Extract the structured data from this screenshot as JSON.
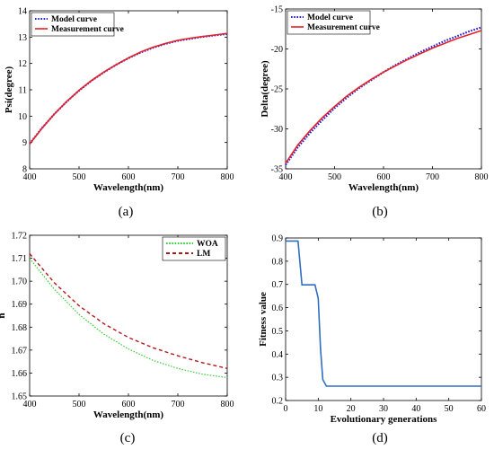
{
  "panels": {
    "a": {
      "caption": "(a)"
    },
    "b": {
      "caption": "(b)"
    },
    "c": {
      "caption": "(c)"
    },
    "d": {
      "caption": "(d)"
    }
  },
  "chart_data": [
    {
      "id": "a",
      "type": "line",
      "xlabel": "Wavelength(nm)",
      "ylabel": "Psi(degree)",
      "xlim": [
        400,
        800
      ],
      "ylim": [
        8,
        14
      ],
      "xticks": [
        400,
        500,
        600,
        700,
        800
      ],
      "yticks": [
        8,
        9,
        10,
        11,
        12,
        13,
        14
      ],
      "grid": false,
      "legend_position": "top-left",
      "x": [
        400,
        425,
        450,
        475,
        500,
        525,
        550,
        575,
        600,
        625,
        650,
        675,
        700,
        725,
        750,
        775,
        800
      ],
      "series": [
        {
          "name": "Model curve",
          "color": "#1f1fd6",
          "style": "dotted",
          "values": [
            8.95,
            9.55,
            10.08,
            10.55,
            10.97,
            11.34,
            11.66,
            11.95,
            12.2,
            12.42,
            12.6,
            12.75,
            12.86,
            12.94,
            13.01,
            13.07,
            13.12
          ]
        },
        {
          "name": "Measurement curve",
          "color": "#e8202a",
          "style": "solid",
          "values": [
            8.94,
            9.54,
            10.08,
            10.56,
            10.98,
            11.35,
            11.67,
            11.95,
            12.21,
            12.44,
            12.62,
            12.76,
            12.88,
            12.96,
            13.02,
            13.08,
            13.14
          ]
        }
      ]
    },
    {
      "id": "b",
      "type": "line",
      "xlabel": "Wavelength(nm)",
      "ylabel": "Delta(degree)",
      "xlim": [
        400,
        800
      ],
      "ylim": [
        -35,
        -15
      ],
      "xticks": [
        400,
        500,
        600,
        700,
        800
      ],
      "yticks": [
        -35,
        -30,
        -25,
        -20,
        -15
      ],
      "grid": false,
      "legend_position": "top-left",
      "x": [
        400,
        425,
        450,
        475,
        500,
        525,
        550,
        575,
        600,
        625,
        650,
        675,
        700,
        725,
        750,
        775,
        800
      ],
      "series": [
        {
          "name": "Model curve",
          "color": "#1f1fd6",
          "style": "dotted",
          "values": [
            -34.5,
            -32.3,
            -30.5,
            -28.9,
            -27.4,
            -26.1,
            -24.9,
            -23.9,
            -22.9,
            -22.0,
            -21.2,
            -20.4,
            -19.7,
            -19.0,
            -18.4,
            -17.8,
            -17.3
          ]
        },
        {
          "name": "Measurement curve",
          "color": "#e8202a",
          "style": "solid",
          "values": [
            -34.3,
            -32.0,
            -30.2,
            -28.6,
            -27.2,
            -25.9,
            -24.8,
            -23.8,
            -22.9,
            -22.1,
            -21.3,
            -20.6,
            -19.9,
            -19.3,
            -18.7,
            -18.2,
            -17.7
          ]
        }
      ]
    },
    {
      "id": "c",
      "type": "line",
      "xlabel": "Wavelength(nm)",
      "ylabel": "n",
      "xlim": [
        400,
        800
      ],
      "ylim": [
        1.65,
        1.72
      ],
      "xticks": [
        400,
        500,
        600,
        700,
        800
      ],
      "yticks": [
        1.65,
        1.66,
        1.67,
        1.68,
        1.69,
        1.7,
        1.71,
        1.72
      ],
      "grid": false,
      "legend_position": "top-right",
      "x": [
        400,
        450,
        500,
        550,
        600,
        650,
        700,
        750,
        800
      ],
      "series": [
        {
          "name": "WOA",
          "color": "#2ecc2e",
          "style": "dotted",
          "values": [
            1.71,
            1.6965,
            1.6855,
            1.677,
            1.6705,
            1.6655,
            1.662,
            1.6595,
            1.658
          ]
        },
        {
          "name": "LM",
          "color": "#b01818",
          "style": "dashed",
          "values": [
            1.712,
            1.6993,
            1.6893,
            1.6815,
            1.6755,
            1.671,
            1.6675,
            1.6645,
            1.662
          ]
        }
      ]
    },
    {
      "id": "d",
      "type": "line",
      "xlabel": "Evolutionary generations",
      "ylabel": "Fitness value",
      "xlim": [
        0,
        60
      ],
      "ylim": [
        0.2,
        0.9
      ],
      "xticks": [
        0,
        10,
        20,
        30,
        40,
        50,
        60
      ],
      "yticks": [
        0.2,
        0.3,
        0.4,
        0.5,
        0.6,
        0.7,
        0.8,
        0.9
      ],
      "grid": false,
      "x": [
        0,
        3.8,
        5,
        9,
        10,
        10.7,
        11.4,
        12.5,
        60
      ],
      "series": [
        {
          "color": "#2f6fbf",
          "style": "solid",
          "values": [
            0.887,
            0.887,
            0.698,
            0.698,
            0.64,
            0.42,
            0.29,
            0.262,
            0.262
          ]
        }
      ]
    }
  ]
}
